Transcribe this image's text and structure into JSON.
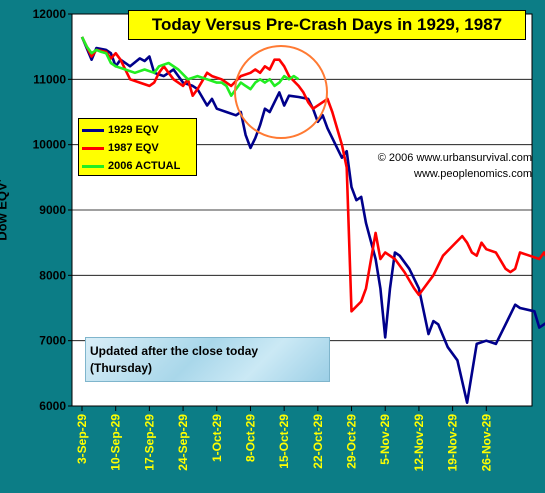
{
  "chart_data": {
    "type": "line",
    "title": "Today Versus Pre-Crash Days in 1929, 1987",
    "ylabel": "Dow EQV'",
    "xlabel": "",
    "ylim": [
      6000,
      12000
    ],
    "yticks": [
      "6000",
      "7000",
      "8000",
      "9000",
      "10000",
      "11000",
      "12000"
    ],
    "ytick_values": [
      6000,
      7000,
      8000,
      9000,
      10000,
      11000,
      12000
    ],
    "categories": [
      "3-Sep-29",
      "10-Sep-29",
      "17-Sep-29",
      "24-Sep-29",
      "1-Oct-29",
      "8-Oct-29",
      "15-Oct-29",
      "22-Oct-29",
      "29-Oct-29",
      "5-Nov-29",
      "12-Nov-29",
      "19-Nov-29",
      "26-Nov-29"
    ],
    "x_range_days": [
      0,
      91
    ],
    "grid": "horizontal",
    "legend_position": "left",
    "series": [
      {
        "name": "1929 EQV",
        "color": "#00008b",
        "points": [
          [
            0,
            11650
          ],
          [
            2,
            11300
          ],
          [
            3,
            11480
          ],
          [
            5,
            11450
          ],
          [
            6,
            11400
          ],
          [
            7,
            11200
          ],
          [
            8,
            11300
          ],
          [
            10,
            11200
          ],
          [
            12,
            11320
          ],
          [
            13,
            11280
          ],
          [
            14,
            11350
          ],
          [
            15,
            11100
          ],
          [
            17,
            11050
          ],
          [
            19,
            11150
          ],
          [
            21,
            10950
          ],
          [
            23,
            10900
          ],
          [
            24,
            10850
          ],
          [
            26,
            10600
          ],
          [
            27,
            10700
          ],
          [
            28,
            10550
          ],
          [
            30,
            10500
          ],
          [
            32,
            10450
          ],
          [
            33,
            10500
          ],
          [
            34,
            10150
          ],
          [
            35,
            9950
          ],
          [
            36,
            10100
          ],
          [
            37,
            10300
          ],
          [
            38,
            10550
          ],
          [
            39,
            10500
          ],
          [
            40,
            10650
          ],
          [
            41,
            10800
          ],
          [
            42,
            10600
          ],
          [
            43,
            10750
          ],
          [
            45,
            10730
          ],
          [
            47,
            10700
          ],
          [
            48,
            10550
          ],
          [
            49,
            10350
          ],
          [
            50,
            10450
          ],
          [
            51,
            10250
          ],
          [
            52,
            10100
          ],
          [
            53,
            9950
          ],
          [
            54,
            9800
          ],
          [
            55,
            9900
          ],
          [
            56,
            9350
          ],
          [
            57,
            9150
          ],
          [
            58,
            9200
          ],
          [
            59,
            8800
          ],
          [
            61,
            8250
          ],
          [
            62,
            7800
          ],
          [
            63,
            7050
          ],
          [
            64,
            7800
          ],
          [
            65,
            8350
          ],
          [
            66,
            8300
          ],
          [
            68,
            8100
          ],
          [
            70,
            7800
          ],
          [
            72,
            7100
          ],
          [
            73,
            7300
          ],
          [
            74,
            7250
          ],
          [
            76,
            6900
          ],
          [
            78,
            6700
          ],
          [
            80,
            6050
          ],
          [
            82,
            6950
          ],
          [
            84,
            7000
          ],
          [
            86,
            6950
          ],
          [
            88,
            7250
          ],
          [
            90,
            7550
          ],
          [
            91,
            7500
          ],
          [
            94,
            7450
          ],
          [
            95,
            7200
          ],
          [
            97,
            7300
          ]
        ]
      },
      {
        "name": "1987 EQV",
        "color": "#ff0000",
        "points": [
          [
            0,
            11650
          ],
          [
            2,
            11350
          ],
          [
            3,
            11450
          ],
          [
            5,
            11420
          ],
          [
            6,
            11320
          ],
          [
            7,
            11400
          ],
          [
            8,
            11300
          ],
          [
            10,
            11000
          ],
          [
            12,
            10950
          ],
          [
            14,
            10900
          ],
          [
            15,
            10950
          ],
          [
            16,
            11100
          ],
          [
            17,
            11200
          ],
          [
            18,
            11100
          ],
          [
            19,
            11000
          ],
          [
            21,
            10900
          ],
          [
            22,
            11000
          ],
          [
            23,
            10750
          ],
          [
            24,
            10850
          ],
          [
            26,
            11100
          ],
          [
            27,
            11050
          ],
          [
            29,
            11000
          ],
          [
            31,
            10900
          ],
          [
            33,
            11050
          ],
          [
            35,
            11100
          ],
          [
            36,
            11150
          ],
          [
            37,
            11100
          ],
          [
            38,
            11200
          ],
          [
            39,
            11150
          ],
          [
            40,
            11300
          ],
          [
            41,
            11300
          ],
          [
            42,
            11200
          ],
          [
            43,
            11050
          ],
          [
            45,
            10900
          ],
          [
            46,
            10800
          ],
          [
            47,
            10650
          ],
          [
            48,
            10550
          ],
          [
            50,
            10650
          ],
          [
            51,
            10700
          ],
          [
            52,
            10500
          ],
          [
            54,
            10000
          ],
          [
            55,
            9650
          ],
          [
            56,
            7450
          ],
          [
            58,
            7600
          ],
          [
            59,
            7800
          ],
          [
            61,
            8650
          ],
          [
            62,
            8250
          ],
          [
            63,
            8350
          ],
          [
            65,
            8250
          ],
          [
            67,
            8050
          ],
          [
            69,
            7800
          ],
          [
            70,
            7700
          ],
          [
            72,
            7900
          ],
          [
            73,
            8000
          ],
          [
            75,
            8300
          ],
          [
            77,
            8450
          ],
          [
            79,
            8600
          ],
          [
            80,
            8500
          ],
          [
            81,
            8350
          ],
          [
            82,
            8300
          ],
          [
            83,
            8500
          ],
          [
            84,
            8400
          ],
          [
            86,
            8350
          ],
          [
            88,
            8100
          ],
          [
            89,
            8050
          ],
          [
            90,
            8100
          ],
          [
            91,
            8350
          ],
          [
            93,
            8300
          ],
          [
            95,
            8250
          ],
          [
            96,
            8350
          ],
          [
            97,
            8200
          ]
        ]
      },
      {
        "name": "2006 ACTUAL",
        "color": "#22ee22",
        "points": [
          [
            0,
            11650
          ],
          [
            1,
            11500
          ],
          [
            2,
            11400
          ],
          [
            3,
            11450
          ],
          [
            4,
            11420
          ],
          [
            5,
            11400
          ],
          [
            6,
            11250
          ],
          [
            7,
            11200
          ],
          [
            9,
            11150
          ],
          [
            11,
            11100
          ],
          [
            13,
            11150
          ],
          [
            15,
            11100
          ],
          [
            16,
            11200
          ],
          [
            18,
            11250
          ],
          [
            20,
            11150
          ],
          [
            22,
            11000
          ],
          [
            24,
            11050
          ],
          [
            26,
            11000
          ],
          [
            28,
            10950
          ],
          [
            29,
            10950
          ],
          [
            30,
            10900
          ],
          [
            31,
            10750
          ],
          [
            32,
            10850
          ],
          [
            33,
            10950
          ],
          [
            34,
            10900
          ],
          [
            35,
            10850
          ],
          [
            36,
            10950
          ],
          [
            37,
            11000
          ],
          [
            38,
            10950
          ],
          [
            39,
            11000
          ],
          [
            40,
            10900
          ],
          [
            41,
            10950
          ],
          [
            42,
            11050
          ],
          [
            43,
            11000
          ],
          [
            44,
            11050
          ],
          [
            45,
            11000
          ]
        ]
      }
    ],
    "annotations": [
      "© 2006 www.urbansurvival.com",
      "www.peoplenomics.com"
    ]
  },
  "copyright_line1": "© 2006 www.urbansurvival.com",
  "copyright_line2": "www.peoplenomics.com",
  "update_line1": "Updated after the close today",
  "update_line2": "(Thursday)",
  "colors": {
    "background": "#0c7d86",
    "plot_bg": "#ffffff",
    "tick_label": "#ffff00",
    "circle": "#ff7a33"
  }
}
